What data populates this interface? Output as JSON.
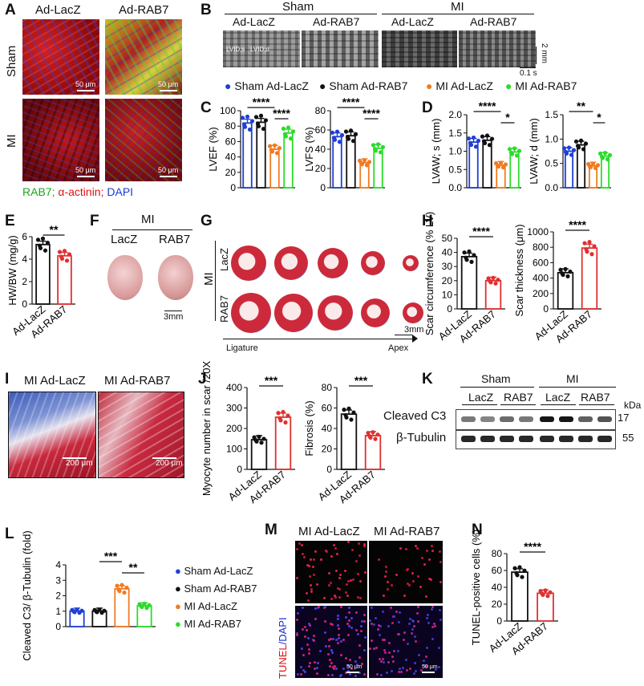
{
  "labels": {
    "A": "A",
    "B": "B",
    "C": "C",
    "D": "D",
    "E": "E",
    "F": "F",
    "G": "G",
    "H": "H",
    "I": "I",
    "J": "J",
    "K": "K",
    "L": "L",
    "M": "M",
    "N": "N"
  },
  "panelA": {
    "col1": "Ad-LacZ",
    "col2": "Ad-RAB7",
    "row1": "Sham",
    "row2": "MI",
    "scale": "50 μm",
    "legend_rab7": "RAB7;",
    "legend_actinin": "α-actinin;",
    "legend_dapi": "DAPI",
    "colors": {
      "rab7": "#1aa51a",
      "actinin": "#e01010",
      "dapi": "#1a3ad8"
    }
  },
  "panelB": {
    "group1": "Sham",
    "group2": "MI",
    "cols": [
      "Ad-LacZ",
      "Ad-RAB7",
      "Ad-LacZ",
      "Ad-RAB7"
    ],
    "lvids": "LVID;s",
    "lvidd": "LVID;d",
    "scale_y": "2 mm",
    "scale_x": "0.1 s"
  },
  "legend4": [
    {
      "name": "Sham Ad-LacZ",
      "color": "#1f3fd6"
    },
    {
      "name": "Sham Ad-RAB7",
      "color": "#111111"
    },
    {
      "name": "MI Ad-LacZ",
      "color": "#f07b22"
    },
    {
      "name": "MI Ad-RAB7",
      "color": "#2bdc2b"
    }
  ],
  "panelF": {
    "group": "MI",
    "c1": "LacZ",
    "c2": "RAB7",
    "scale": "3mm"
  },
  "panelG": {
    "group": "MI",
    "row1": "LacZ",
    "row2": "RAB7",
    "scale": "3mm",
    "from": "Ligature",
    "to": "Apex"
  },
  "panelI": {
    "left": "MI Ad-LacZ",
    "right": "MI Ad-RAB7",
    "scale": "200 μm"
  },
  "panelK": {
    "group1": "Sham",
    "group2": "MI",
    "lanes": [
      "LacZ",
      "RAB7",
      "LacZ",
      "RAB7"
    ],
    "kda": "kDa",
    "row1": "Cleaved C3",
    "row2": "β-Tubulin",
    "mw1": "17",
    "mw2": "55"
  },
  "panelM": {
    "left": "MI Ad-LacZ",
    "right": "MI Ad-RAB7",
    "ylabel_tunel": "TUNEL",
    "ylabel_dapi": "/DAPI",
    "scale": "50 μm"
  },
  "chart_data": [
    {
      "id": "C-LVEF",
      "type": "bar",
      "ylabel": "LVEF (%)",
      "ylim": [
        0,
        100
      ],
      "yticks": [
        0,
        20,
        40,
        60,
        80,
        100
      ],
      "categories": [
        "Sham Ad-LacZ",
        "Sham Ad-RAB7",
        "MI Ad-LacZ",
        "MI Ad-RAB7"
      ],
      "values": [
        84,
        85,
        50,
        71
      ],
      "sig": [
        {
          "from": 0,
          "to": 2,
          "label": "****"
        },
        {
          "from": 2,
          "to": 3,
          "label": "****"
        }
      ]
    },
    {
      "id": "C-LVFS",
      "type": "bar",
      "ylabel": "LVFS (%)",
      "ylim": [
        0,
        80
      ],
      "yticks": [
        0,
        20,
        40,
        60,
        80
      ],
      "categories": [
        "Sham Ad-LacZ",
        "Sham Ad-RAB7",
        "MI Ad-LacZ",
        "MI Ad-RAB7"
      ],
      "values": [
        53,
        54,
        26,
        41
      ],
      "sig": [
        {
          "from": 0,
          "to": 2,
          "label": "****"
        },
        {
          "from": 2,
          "to": 3,
          "label": "****"
        }
      ]
    },
    {
      "id": "D-LVAWs",
      "type": "bar",
      "ylabel": "LVAW; s (mm)",
      "ylim": [
        0,
        2.0
      ],
      "yticks": [
        0.0,
        0.5,
        1.0,
        1.5,
        2.0
      ],
      "categories": [
        "Sham Ad-LacZ",
        "Sham Ad-RAB7",
        "MI Ad-LacZ",
        "MI Ad-RAB7"
      ],
      "values": [
        1.25,
        1.3,
        0.62,
        0.98
      ],
      "sig": [
        {
          "from": 0,
          "to": 2,
          "label": "****"
        },
        {
          "from": 2,
          "to": 3,
          "label": "*"
        }
      ]
    },
    {
      "id": "D-LVAWd",
      "type": "bar",
      "ylabel": "LVAW; d (mm)",
      "ylim": [
        0,
        1.5
      ],
      "yticks": [
        0.0,
        0.5,
        1.0,
        1.5
      ],
      "categories": [
        "Sham Ad-LacZ",
        "Sham Ad-RAB7",
        "MI Ad-LacZ",
        "MI Ad-RAB7"
      ],
      "values": [
        0.75,
        0.88,
        0.45,
        0.65
      ],
      "sig": [
        {
          "from": 0,
          "to": 2,
          "label": "**"
        },
        {
          "from": 2,
          "to": 3,
          "label": "*"
        }
      ]
    },
    {
      "id": "E",
      "type": "bar",
      "ylabel": "HW/BW (mg/g)",
      "ylim": [
        0,
        6
      ],
      "yticks": [
        0,
        2,
        4,
        6
      ],
      "categories": [
        "Ad-LacZ",
        "Ad-RAB7"
      ],
      "values": [
        5.3,
        4.3
      ],
      "sig": [
        {
          "from": 0,
          "to": 1,
          "label": "**"
        }
      ]
    },
    {
      "id": "H-circ",
      "type": "bar",
      "ylabel": "Scar circumference (% LV)",
      "ylim": [
        0,
        50
      ],
      "yticks": [
        0,
        10,
        20,
        30,
        40,
        50
      ],
      "categories": [
        "Ad-LacZ",
        "Ad-RAB7"
      ],
      "values": [
        37,
        20
      ],
      "sig": [
        {
          "from": 0,
          "to": 1,
          "label": "****"
        }
      ]
    },
    {
      "id": "H-thick",
      "type": "bar",
      "ylabel": "Scar thickness (μm)",
      "ylim": [
        0,
        1000
      ],
      "yticks": [
        0,
        200,
        400,
        600,
        800,
        1000
      ],
      "categories": [
        "Ad-LacZ",
        "Ad-RAB7"
      ],
      "values": [
        470,
        790
      ],
      "sig": [
        {
          "from": 0,
          "to": 1,
          "label": "****"
        }
      ]
    },
    {
      "id": "J-myo",
      "type": "bar",
      "ylabel": "Myocyte number in scar /20X",
      "ylim": [
        0,
        400
      ],
      "yticks": [
        0,
        100,
        200,
        300,
        400
      ],
      "categories": [
        "Ad-LacZ",
        "Ad-RAB7"
      ],
      "values": [
        145,
        255
      ],
      "sig": [
        {
          "from": 0,
          "to": 1,
          "label": "***"
        }
      ]
    },
    {
      "id": "J-fib",
      "type": "bar",
      "ylabel": "Fibrosis (%)",
      "ylim": [
        0,
        80
      ],
      "yticks": [
        0,
        20,
        40,
        60,
        80
      ],
      "categories": [
        "Ad-LacZ",
        "Ad-RAB7"
      ],
      "values": [
        54,
        33
      ],
      "sig": [
        {
          "from": 0,
          "to": 1,
          "label": "***"
        }
      ]
    },
    {
      "id": "L",
      "type": "bar",
      "ylabel": "Cleaved C3/ β-Tubulin (fold)",
      "ylim": [
        0,
        4
      ],
      "yticks": [
        0,
        1,
        2,
        3,
        4
      ],
      "categories": [
        "Sham Ad-LacZ",
        "Sham Ad-RAB7",
        "MI Ad-LacZ",
        "MI Ad-RAB7"
      ],
      "values": [
        1.0,
        1.0,
        2.45,
        1.35
      ],
      "sig": [
        {
          "from": 1,
          "to": 2,
          "label": "***"
        },
        {
          "from": 2,
          "to": 3,
          "label": "**"
        }
      ]
    },
    {
      "id": "N",
      "type": "bar",
      "ylabel": "TUNEL-positive cells (%)",
      "ylim": [
        0,
        80
      ],
      "yticks": [
        0,
        20,
        40,
        60,
        80
      ],
      "categories": [
        "Ad-LacZ",
        "Ad-RAB7"
      ],
      "values": [
        58,
        33
      ],
      "sig": [
        {
          "from": 0,
          "to": 1,
          "label": "****"
        }
      ]
    }
  ]
}
